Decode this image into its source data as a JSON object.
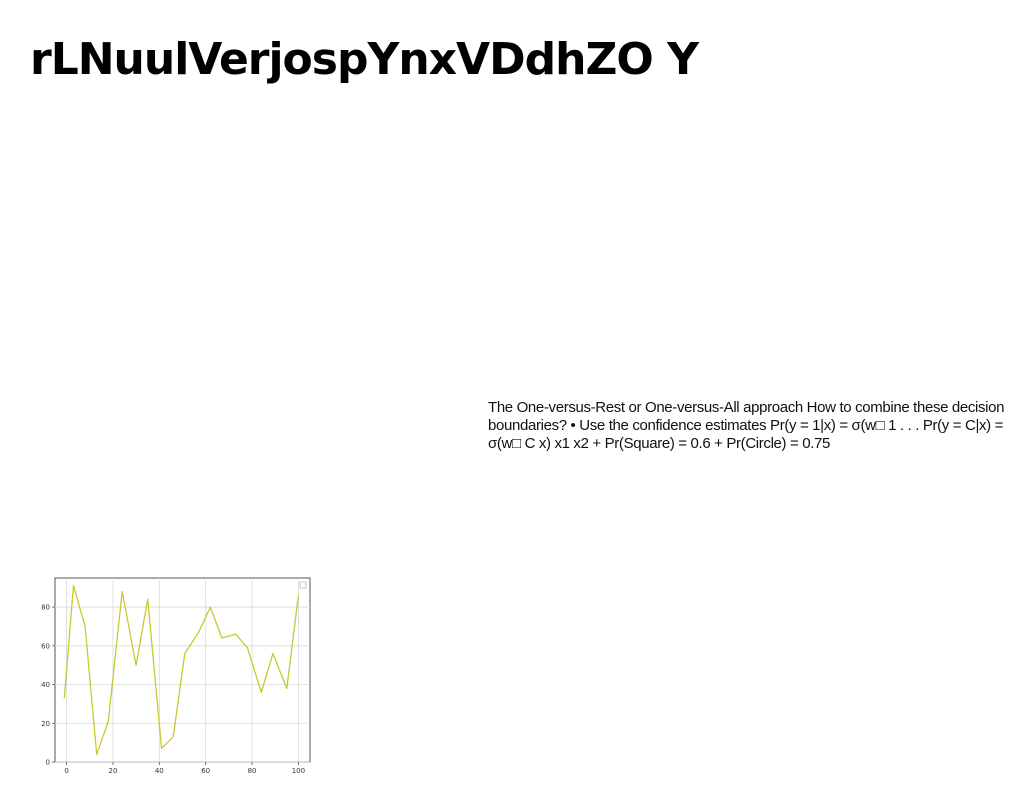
{
  "slide": {
    "title": "rLNuulVerjospYnxVDdhZO Y",
    "body": "The One-versus-Rest or One-versus-All approach How to combine these decision boundaries? • Use the confidence estimates Pr(y = 1|x) = σ(w□ 1 . . . Pr(y = C|x) = σ(w□ C x) x1 x2 + Pr(Square) = 0.6 + Pr(Circle) = 0.75"
  },
  "chart_data": {
    "type": "line",
    "x": [
      -1,
      3,
      8,
      13,
      18,
      24,
      30,
      35,
      41,
      46,
      51,
      57,
      62,
      67,
      73,
      78,
      84,
      89,
      95,
      100
    ],
    "series": [
      {
        "values": [
          33,
          91,
          70,
          4,
          21,
          88,
          50,
          84,
          7,
          13,
          56,
          67,
          80,
          64,
          66,
          59,
          36,
          56,
          38,
          86
        ],
        "color": "#c8c832"
      }
    ],
    "xlim": [
      -5,
      105
    ],
    "ylim": [
      0,
      95
    ],
    "xticks": [
      0,
      20,
      40,
      60,
      80,
      100
    ],
    "yticks": [
      0,
      20,
      40,
      60,
      80
    ],
    "grid": true,
    "legend": "top-right"
  }
}
